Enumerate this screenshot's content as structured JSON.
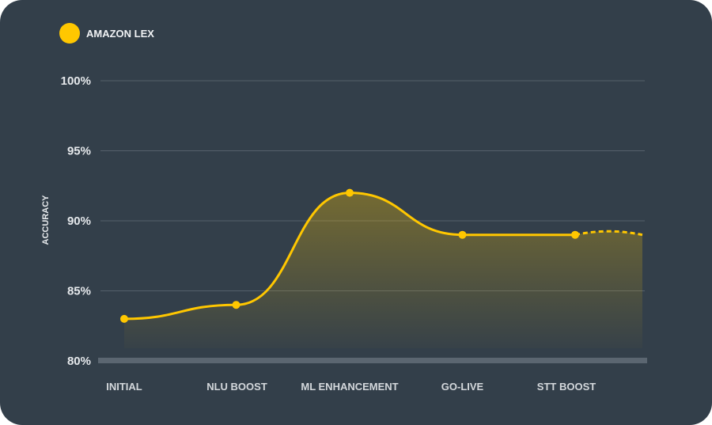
{
  "chart_data": {
    "type": "line",
    "title": "",
    "legend": {
      "label": "AMAZON LEX",
      "position": "top-left"
    },
    "xlabel": "",
    "ylabel": "ACCURACY",
    "categories": [
      "INITIAL",
      "NLU BOOST",
      "ML ENHANCEMENT",
      "GO-LIVE",
      "STT BOOST"
    ],
    "series": [
      {
        "name": "AMAZON LEX",
        "values": [
          83,
          84,
          92,
          89,
          89
        ],
        "projected_end": 89,
        "color": "#ffc700"
      }
    ],
    "yticks": [
      "100%",
      "95%",
      "90%",
      "85%",
      "80%"
    ],
    "ytick_values": [
      100,
      95,
      90,
      85,
      80
    ],
    "ylim": [
      80,
      100
    ],
    "grid": true
  }
}
